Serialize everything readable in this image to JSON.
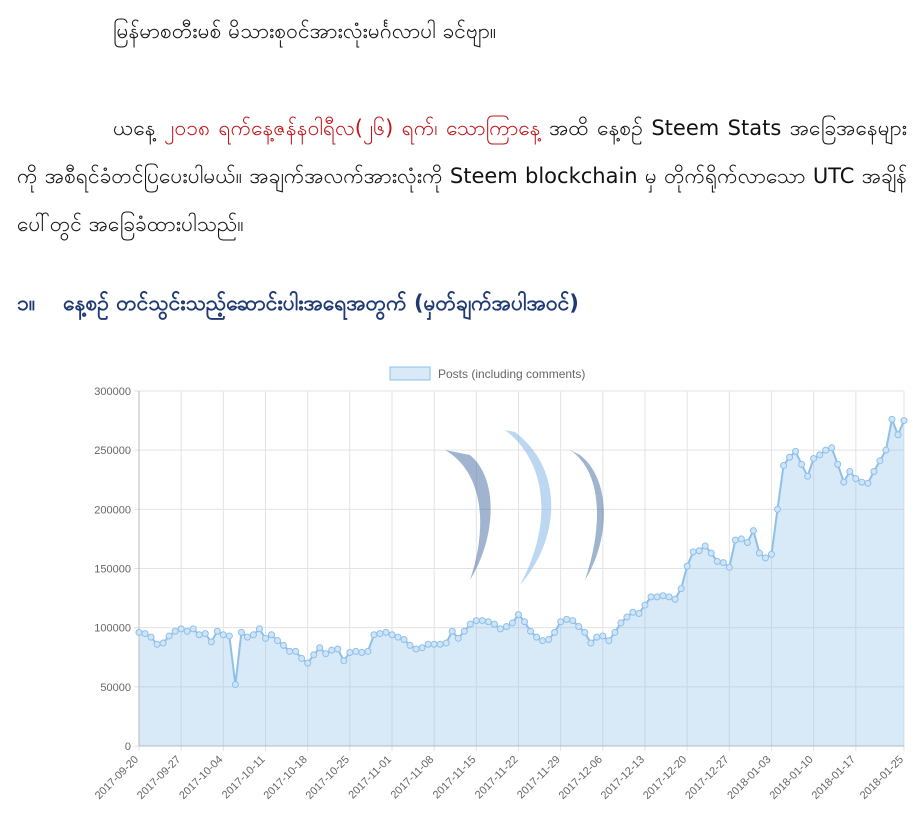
{
  "document": {
    "greeting": "မြန်မာစတီးမစ် မိသားစုဝင်အားလုံးမင်္ဂလာပါ ခင်ဗျာ။",
    "intro": {
      "before": "ယနေ့",
      "highlight": "၂၀၁၈ ရက်နေ့ဇန်နဝါရီလ(၂၆) ရက်၊ သောကြာနေ့",
      "after": "အထိ နေ့စဉ် Steem Stats အခြေအနေများကို အစီရင်ခံတင်ပြပေးပါမယ်။ အချက်အလက်အားလုံးကို Steem blockchain မှ တိုက်ရိုက်လာသော UTC အချိန်ပေါ်တွင် အခြေခံထားပါသည်။"
    },
    "heading": {
      "number": "၁။",
      "text": "နေ့စဉ် တင်သွင်းသည့်ဆောင်းပါးအရေအတွက် (မှတ်ချက်အပါအဝင်)"
    }
  },
  "chart_data": {
    "type": "line",
    "fill": true,
    "grid": true,
    "legend": "top",
    "categories": [
      "2017-09-20",
      null,
      null,
      null,
      null,
      null,
      null,
      "2017-09-27",
      null,
      null,
      null,
      null,
      null,
      null,
      "2017-10-04",
      null,
      null,
      null,
      null,
      null,
      null,
      "2017-10-11",
      null,
      null,
      null,
      null,
      null,
      null,
      "2017-10-18",
      null,
      null,
      null,
      null,
      null,
      null,
      "2017-10-25",
      null,
      null,
      null,
      null,
      null,
      null,
      "2017-11-01",
      null,
      null,
      null,
      null,
      null,
      null,
      "2017-11-08",
      null,
      null,
      null,
      null,
      null,
      null,
      "2017-11-15",
      null,
      null,
      null,
      null,
      null,
      null,
      "2017-11-22",
      null,
      null,
      null,
      null,
      null,
      null,
      "2017-11-29",
      null,
      null,
      null,
      null,
      null,
      null,
      "2017-12-06",
      null,
      null,
      null,
      null,
      null,
      null,
      "2017-12-13",
      null,
      null,
      null,
      null,
      null,
      null,
      "2017-12-20",
      null,
      null,
      null,
      null,
      null,
      null,
      "2017-12-27",
      null,
      null,
      null,
      null,
      null,
      null,
      "2018-01-03",
      null,
      null,
      null,
      null,
      null,
      null,
      "2018-01-10",
      null,
      null,
      null,
      null,
      null,
      null,
      "2018-01-17",
      null,
      null,
      null,
      null,
      null,
      null,
      null,
      "2018-01-25"
    ],
    "series": [
      {
        "name": "Posts (including comments)",
        "color": "#8ec0ea",
        "values": [
          96000,
          95000,
          92000,
          86000,
          87000,
          93000,
          97000,
          99000,
          97000,
          99000,
          94000,
          95000,
          88000,
          97000,
          94000,
          93000,
          52000,
          96000,
          92000,
          94000,
          99000,
          91000,
          94000,
          89000,
          85000,
          80000,
          80000,
          74000,
          70000,
          77000,
          83000,
          78000,
          81000,
          82000,
          72000,
          79000,
          80000,
          79000,
          80000,
          94000,
          95000,
          96000,
          94000,
          92000,
          90000,
          85000,
          82000,
          83000,
          86000,
          86000,
          86000,
          87000,
          97000,
          91000,
          97000,
          103000,
          106000,
          106000,
          105000,
          103000,
          99000,
          101000,
          104000,
          111000,
          105000,
          97000,
          92000,
          89000,
          90000,
          96000,
          105000,
          107000,
          106000,
          101000,
          96000,
          87000,
          92000,
          93000,
          89000,
          96000,
          104000,
          109000,
          113000,
          112000,
          119000,
          126000,
          126000,
          127000,
          126000,
          124000,
          133000,
          152000,
          164000,
          165000,
          169000,
          163000,
          156000,
          155000,
          151000,
          174000,
          175000,
          172000,
          182000,
          163000,
          159000,
          162000,
          200000,
          237000,
          244000,
          249000,
          238000,
          228000,
          243000,
          246000,
          250000,
          252000,
          238000,
          223000,
          232000,
          226000,
          223000,
          222000,
          232000,
          241000,
          250000,
          276000,
          263000,
          275000
        ]
      }
    ],
    "ylim": [
      0,
      300000
    ],
    "yticks": [
      0,
      50000,
      100000,
      150000,
      200000,
      250000,
      300000
    ]
  }
}
